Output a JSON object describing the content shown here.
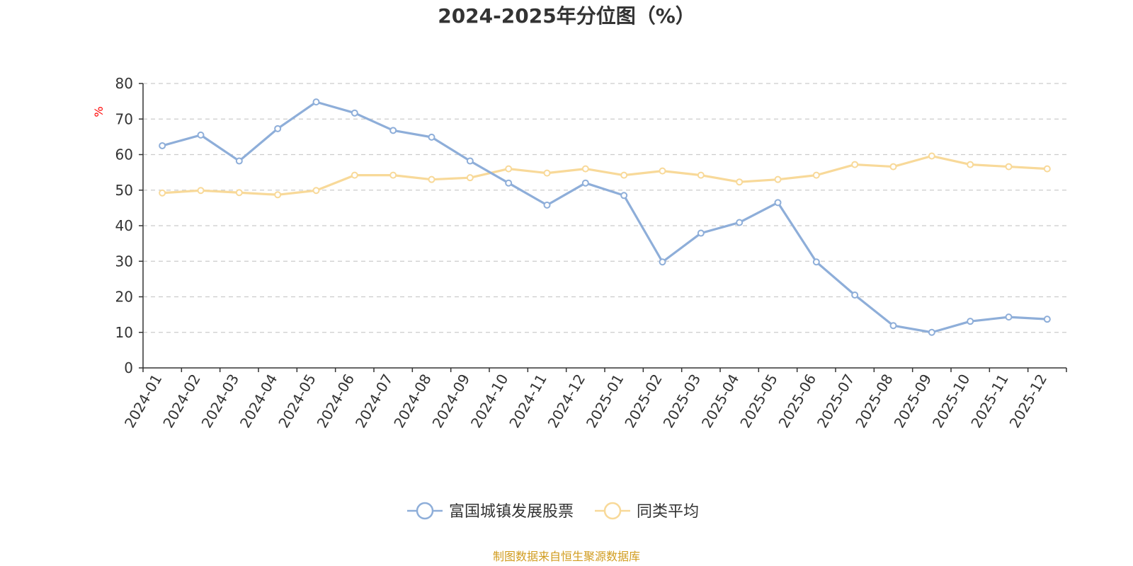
{
  "chart_data": {
    "type": "line",
    "title": "2024-2025年分位图（%）",
    "ylabel": "%",
    "ylim": [
      0,
      80
    ],
    "yticks": [
      0,
      10,
      20,
      30,
      40,
      50,
      60,
      70,
      80
    ],
    "grid": true,
    "legend_position": "bottom",
    "categories": [
      "2024-01",
      "2024-02",
      "2024-03",
      "2024-04",
      "2024-05",
      "2024-06",
      "2024-07",
      "2024-08",
      "2024-09",
      "2024-10",
      "2024-11",
      "2024-12",
      "2025-01",
      "2025-02",
      "2025-03",
      "2025-04",
      "2025-05",
      "2025-06",
      "2025-07",
      "2025-08",
      "2025-09",
      "2025-10",
      "2025-11",
      "2025-12"
    ],
    "series": [
      {
        "name": "富国城镇发展股票",
        "color": "#8eaed9",
        "values": [
          62.5,
          65.5,
          58.2,
          67.3,
          74.8,
          71.7,
          66.8,
          64.9,
          58.2,
          52.0,
          45.8,
          52.0,
          48.5,
          29.8,
          37.9,
          40.9,
          46.5,
          29.8,
          20.5,
          11.9,
          10.0,
          13.1,
          14.3,
          13.7
        ]
      },
      {
        "name": "同类平均",
        "color": "#f8d999",
        "values": [
          49.2,
          49.9,
          49.3,
          48.7,
          49.9,
          54.2,
          54.2,
          53.0,
          53.5,
          56.0,
          54.8,
          56.0,
          54.2,
          55.4,
          54.2,
          52.3,
          53.0,
          54.2,
          57.2,
          56.6,
          59.6,
          57.2,
          56.6,
          56.0
        ]
      }
    ],
    "source": "制图数据来自恒生聚源数据库",
    "colors": {
      "axis": "#333333",
      "grid": "#cccccc",
      "unit": "#ff0000",
      "source": "#d19c1f"
    }
  }
}
